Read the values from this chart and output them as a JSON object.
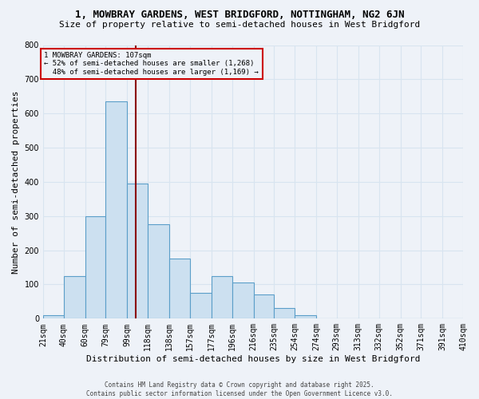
{
  "title": "1, MOWBRAY GARDENS, WEST BRIDGFORD, NOTTINGHAM, NG2 6JN",
  "subtitle": "Size of property relative to semi-detached houses in West Bridgford",
  "xlabel": "Distribution of semi-detached houses by size in West Bridgford",
  "ylabel": "Number of semi-detached properties",
  "bins": [
    21,
    40,
    60,
    79,
    99,
    118,
    138,
    157,
    177,
    196,
    216,
    235,
    254,
    274,
    293,
    313,
    332,
    352,
    371,
    391,
    410
  ],
  "counts": [
    10,
    125,
    300,
    635,
    395,
    275,
    175,
    75,
    125,
    105,
    70,
    30,
    10,
    0,
    0,
    0,
    0,
    0,
    0,
    0
  ],
  "property_size": 107,
  "property_label": "1 MOWBRAY GARDENS: 107sqm",
  "pct_smaller": 52,
  "pct_larger": 48,
  "n_smaller": 1268,
  "n_larger": 1169,
  "bar_color": "#cce0f0",
  "bar_edgecolor": "#5b9ec9",
  "vline_color": "#8b0000",
  "annotation_box_edgecolor": "#cc0000",
  "background_color": "#eef2f8",
  "grid_color": "#d8e4f0",
  "footnote": "Contains HM Land Registry data © Crown copyright and database right 2025.\nContains public sector information licensed under the Open Government Licence v3.0.",
  "ylim": [
    0,
    800
  ],
  "yticks": [
    0,
    100,
    200,
    300,
    400,
    500,
    600,
    700,
    800
  ],
  "title_fontsize": 9,
  "subtitle_fontsize": 8,
  "tick_fontsize": 7,
  "label_fontsize": 8
}
